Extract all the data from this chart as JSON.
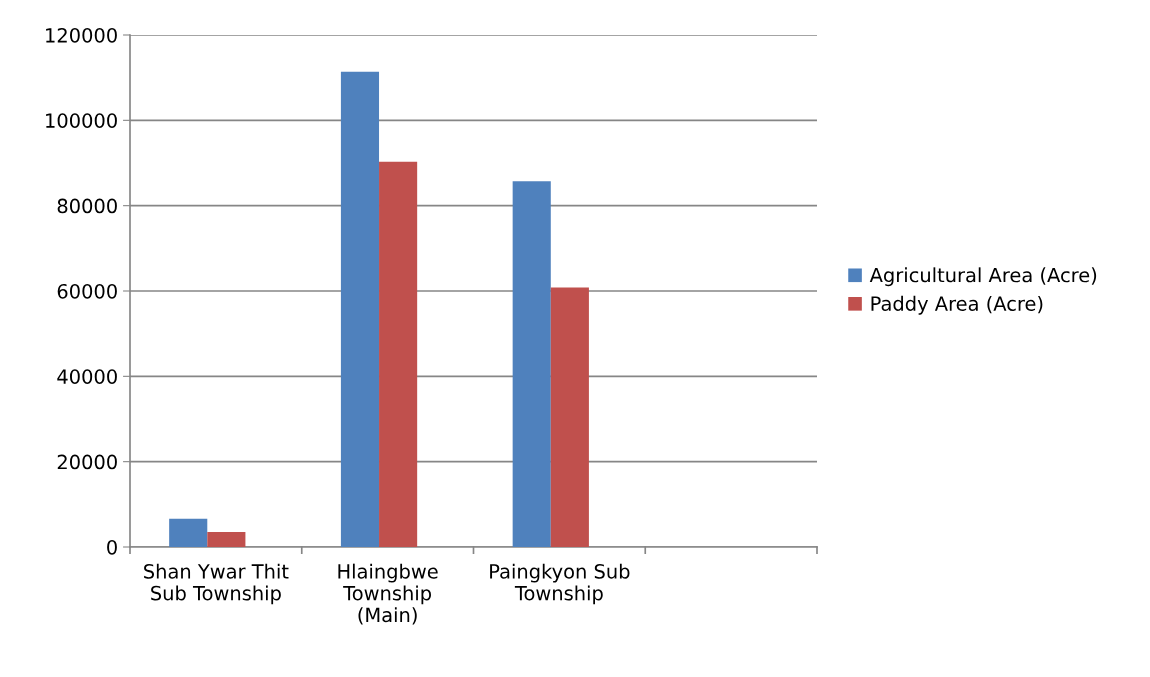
{
  "chart_data": {
    "type": "bar",
    "categories": [
      "Shan Ywar Thit\nSub Township",
      "Hlaingbwe\nTownship\n(Main)",
      "Paingkyon Sub\nTownship",
      null
    ],
    "series": [
      {
        "name": "Agricultural Area (Acre)",
        "color": "#4f81bd",
        "values": [
          6600,
          111400,
          85700,
          null
        ]
      },
      {
        "name": "Paddy Area (Acre)",
        "color": "#c0504d",
        "values": [
          3500,
          90300,
          60800,
          null
        ]
      }
    ],
    "ylim": [
      0,
      120000
    ],
    "yticks": [
      0,
      20000,
      40000,
      60000,
      80000,
      100000,
      120000
    ],
    "grid": "y",
    "legend": "right"
  }
}
